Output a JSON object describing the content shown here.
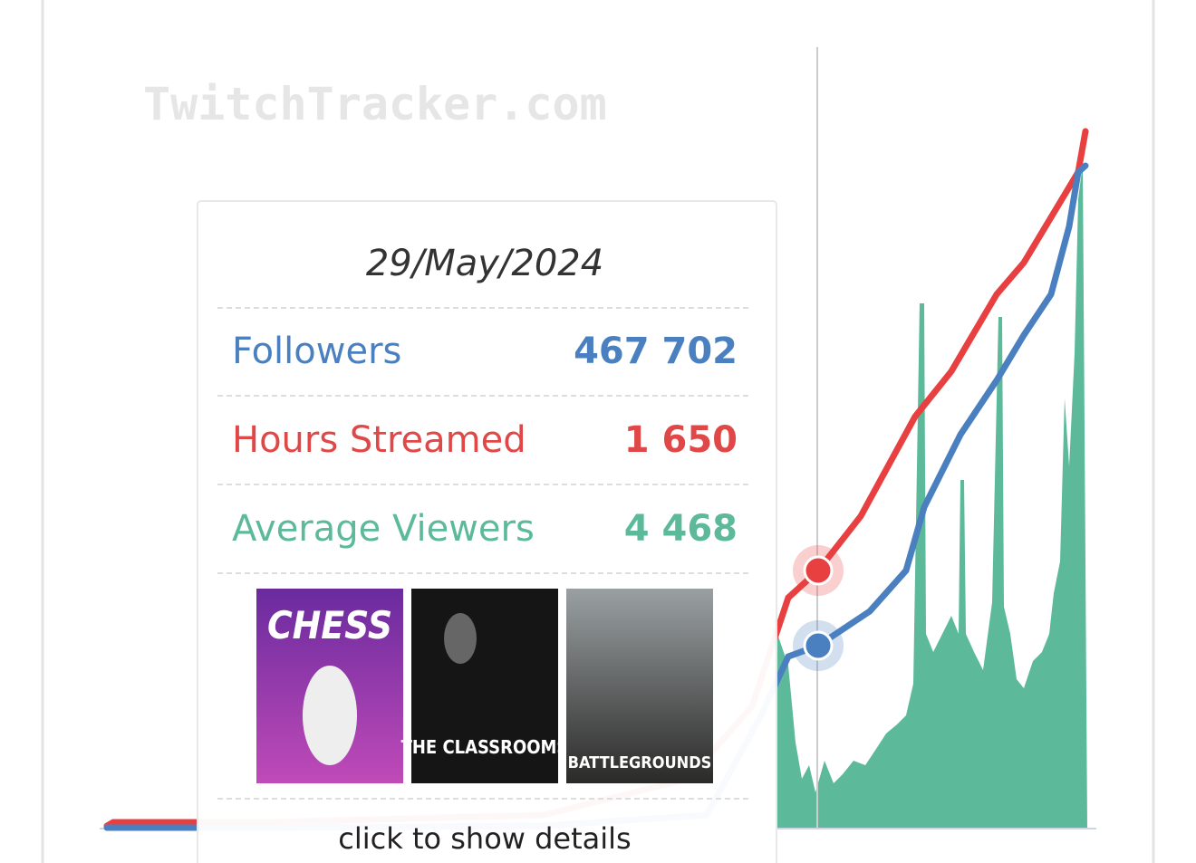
{
  "watermark": "TwitchTracker.com",
  "tooltip": {
    "date": "29/May/2024",
    "rows": [
      {
        "label": "Followers",
        "value": "467 702"
      },
      {
        "label": "Hours Streamed",
        "value": "1 650"
      },
      {
        "label": "Average Viewers",
        "value": "4 468"
      }
    ],
    "games": [
      "CHESS",
      "THE CLASSROOMS",
      "BATTLEGROUNDS"
    ],
    "footer": "click to show details"
  }
}
